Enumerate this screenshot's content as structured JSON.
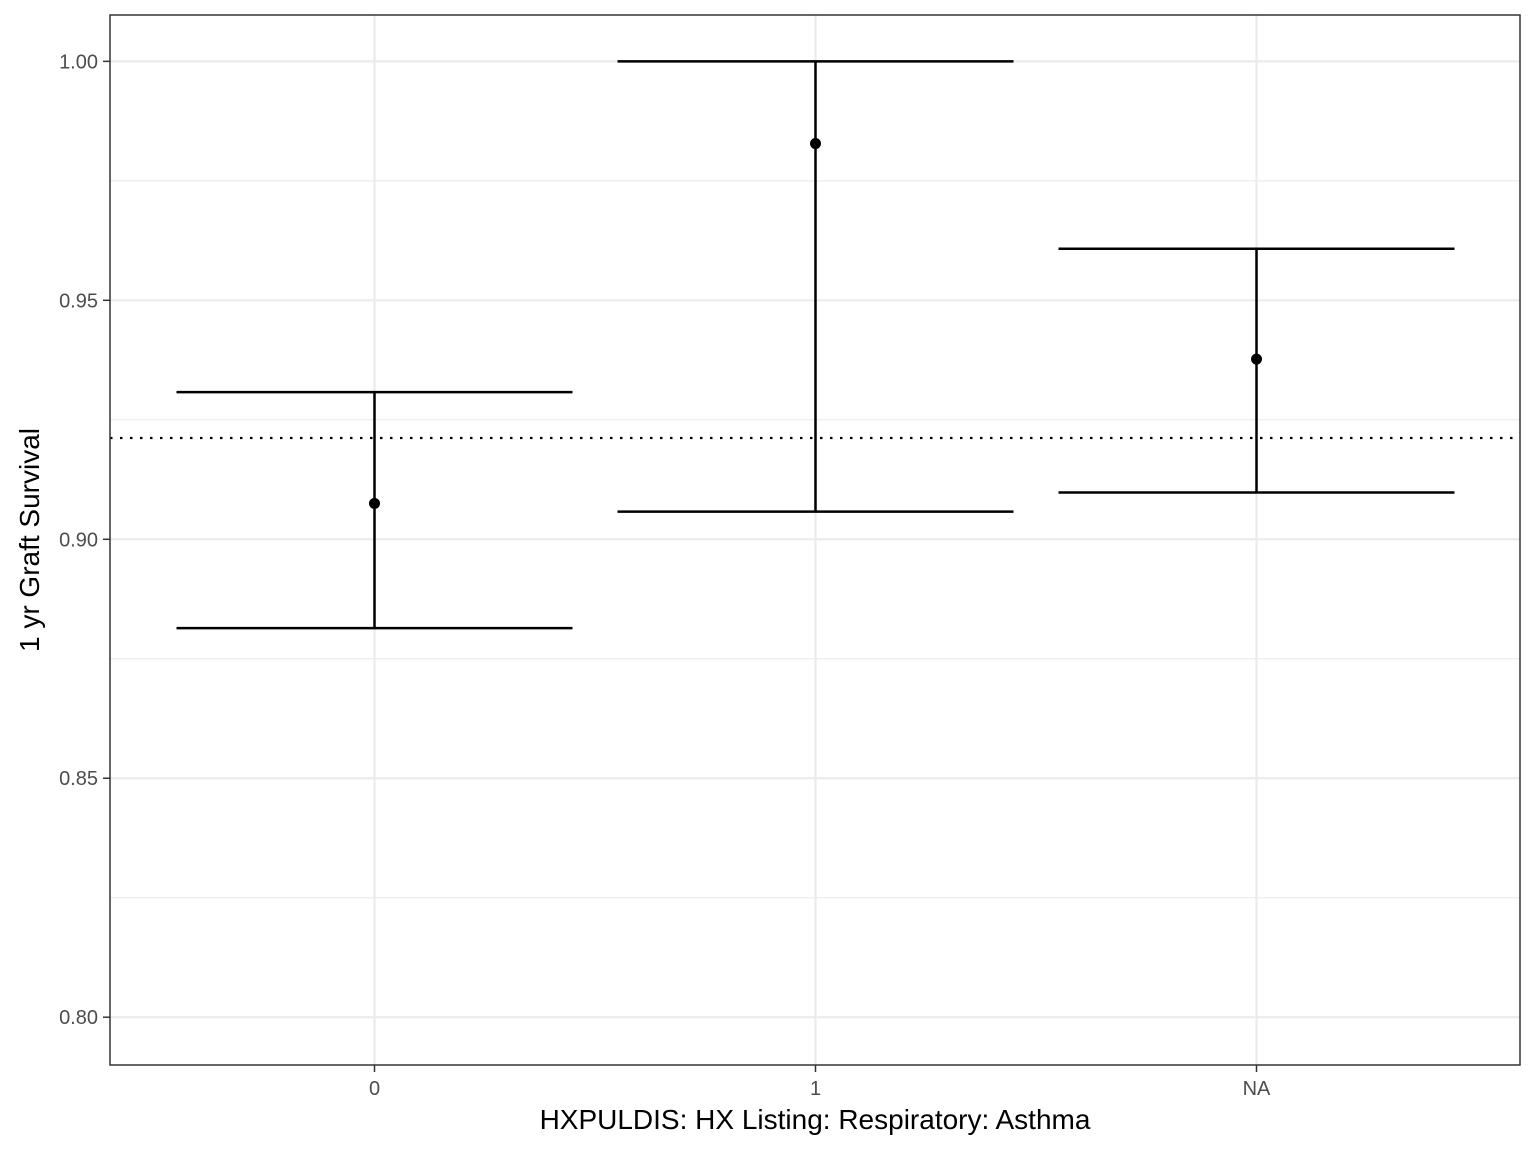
{
  "chart_data": {
    "type": "errorbar",
    "title": "",
    "xlabel": "HXPULDIS: HX Listing: Respiratory: Asthma",
    "ylabel": "1 yr Graft Survival",
    "categories": [
      "0",
      "1",
      "NA"
    ],
    "series": [
      {
        "estimate": [
          0.9075,
          0.9828,
          0.9377
        ],
        "lower": [
          0.8814,
          0.9058,
          0.9098
        ],
        "upper": [
          0.9308,
          1.0,
          0.9608
        ]
      }
    ],
    "reference_line": {
      "y": 0.9212,
      "style": "dotted"
    },
    "ylim": [
      0.79,
      1.0097
    ],
    "y_ticks": [
      0.8,
      0.85,
      0.9,
      0.95,
      1.0
    ],
    "y_tick_labels": [
      "0.80",
      "0.85",
      "0.90",
      "0.95",
      "1.00"
    ],
    "y_minor_ticks": [
      0.825,
      0.875,
      0.925,
      0.975
    ],
    "grid": true,
    "legend": "none",
    "theme": "bw",
    "colors": {
      "mark": "#000000",
      "grid": "#ebebeb",
      "panel_border": "#333333",
      "tick_text": "#4d4d4d"
    }
  }
}
